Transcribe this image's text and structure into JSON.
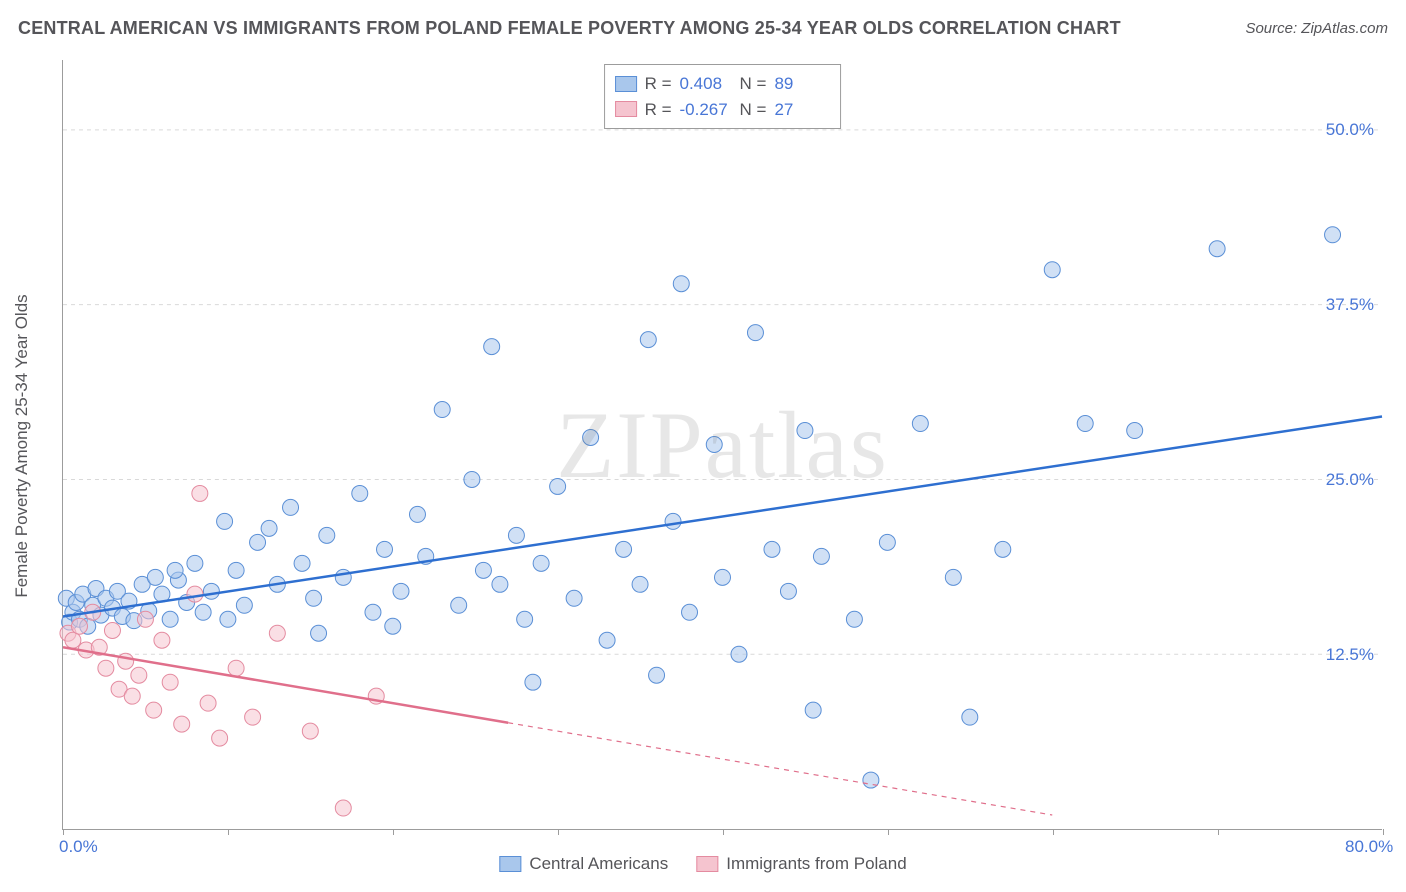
{
  "title": "CENTRAL AMERICAN VS IMMIGRANTS FROM POLAND FEMALE POVERTY AMONG 25-34 YEAR OLDS CORRELATION CHART",
  "source": "Source: ZipAtlas.com",
  "watermark": "ZIPatlas",
  "y_axis_label": "Female Poverty Among 25-34 Year Olds",
  "chart": {
    "type": "scatter",
    "xlim": [
      0,
      80
    ],
    "ylim": [
      0,
      55
    ],
    "xtick_positions": [
      0,
      10,
      20,
      30,
      40,
      50,
      60,
      70,
      80
    ],
    "xtick_labels": {
      "0": "0.0%",
      "80": "80.0%"
    },
    "ytick_positions": [
      12.5,
      25.0,
      37.5,
      50.0
    ],
    "ytick_labels": [
      "12.5%",
      "25.0%",
      "37.5%",
      "50.0%"
    ],
    "grid_color": "#d9d9d9",
    "axis_color": "#9c9c9c",
    "background_color": "#ffffff",
    "marker_radius": 8,
    "marker_opacity": 0.55,
    "line_width_solid": 2.5,
    "line_width_dash": 1.2
  },
  "series": [
    {
      "name": "Central Americans",
      "color_fill": "#a9c7ec",
      "color_stroke": "#5a8fd6",
      "trend_color": "#2e6fd0",
      "stats": {
        "R": "0.408",
        "N": "89"
      },
      "trend": {
        "x1": 0,
        "y1": 15.2,
        "x2": 80,
        "y2": 29.5,
        "solid_until_x": 80
      },
      "points": [
        [
          0.2,
          16.5
        ],
        [
          0.4,
          14.8
        ],
        [
          0.6,
          15.5
        ],
        [
          0.8,
          16.2
        ],
        [
          1.0,
          15.0
        ],
        [
          1.2,
          16.8
        ],
        [
          1.5,
          14.5
        ],
        [
          1.8,
          16.0
        ],
        [
          2.0,
          17.2
        ],
        [
          2.3,
          15.3
        ],
        [
          2.6,
          16.5
        ],
        [
          3.0,
          15.8
        ],
        [
          3.3,
          17.0
        ],
        [
          3.6,
          15.2
        ],
        [
          4.0,
          16.3
        ],
        [
          4.3,
          14.9
        ],
        [
          4.8,
          17.5
        ],
        [
          5.2,
          15.6
        ],
        [
          5.6,
          18.0
        ],
        [
          6.0,
          16.8
        ],
        [
          6.5,
          15.0
        ],
        [
          7.0,
          17.8
        ],
        [
          7.5,
          16.2
        ],
        [
          8.0,
          19.0
        ],
        [
          8.5,
          15.5
        ],
        [
          9.0,
          17.0
        ],
        [
          9.8,
          22.0
        ],
        [
          10.5,
          18.5
        ],
        [
          11.0,
          16.0
        ],
        [
          11.8,
          20.5
        ],
        [
          12.5,
          21.5
        ],
        [
          13.0,
          17.5
        ],
        [
          13.8,
          23.0
        ],
        [
          14.5,
          19.0
        ],
        [
          15.2,
          16.5
        ],
        [
          16.0,
          21.0
        ],
        [
          17.0,
          18.0
        ],
        [
          18.0,
          24.0
        ],
        [
          18.8,
          15.5
        ],
        [
          19.5,
          20.0
        ],
        [
          20.5,
          17.0
        ],
        [
          21.5,
          22.5
        ],
        [
          22.0,
          19.5
        ],
        [
          23.0,
          30.0
        ],
        [
          24.0,
          16.0
        ],
        [
          24.8,
          25.0
        ],
        [
          25.5,
          18.5
        ],
        [
          26.0,
          34.5
        ],
        [
          26.5,
          17.5
        ],
        [
          27.5,
          21.0
        ],
        [
          28.0,
          15.0
        ],
        [
          28.5,
          10.5
        ],
        [
          29.0,
          19.0
        ],
        [
          30.0,
          24.5
        ],
        [
          31.0,
          16.5
        ],
        [
          32.0,
          28.0
        ],
        [
          33.0,
          13.5
        ],
        [
          34.0,
          20.0
        ],
        [
          35.0,
          17.5
        ],
        [
          35.5,
          35.0
        ],
        [
          36.0,
          11.0
        ],
        [
          37.0,
          22.0
        ],
        [
          37.5,
          39.0
        ],
        [
          38.0,
          15.5
        ],
        [
          39.5,
          27.5
        ],
        [
          40.0,
          18.0
        ],
        [
          41.0,
          12.5
        ],
        [
          42.0,
          35.5
        ],
        [
          43.0,
          20.0
        ],
        [
          44.0,
          17.0
        ],
        [
          45.0,
          28.5
        ],
        [
          45.5,
          8.5
        ],
        [
          46.0,
          19.5
        ],
        [
          48.0,
          15.0
        ],
        [
          49.0,
          3.5
        ],
        [
          50.0,
          20.5
        ],
        [
          52.0,
          29.0
        ],
        [
          54.0,
          18.0
        ],
        [
          55.0,
          8.0
        ],
        [
          57.0,
          20.0
        ],
        [
          60.0,
          40.0
        ],
        [
          62.0,
          29.0
        ],
        [
          65.0,
          28.5
        ],
        [
          70.0,
          41.5
        ],
        [
          77.0,
          42.5
        ],
        [
          15.5,
          14.0
        ],
        [
          20.0,
          14.5
        ],
        [
          10.0,
          15.0
        ],
        [
          6.8,
          18.5
        ]
      ]
    },
    {
      "name": "Immigrants from Poland",
      "color_fill": "#f5c4cf",
      "color_stroke": "#e48ba0",
      "trend_color": "#e06f8b",
      "stats": {
        "R": "-0.267",
        "N": "27"
      },
      "trend": {
        "x1": 0,
        "y1": 13.0,
        "x2": 60,
        "y2": 1.0,
        "solid_until_x": 27
      },
      "points": [
        [
          0.3,
          14.0
        ],
        [
          0.6,
          13.5
        ],
        [
          1.0,
          14.5
        ],
        [
          1.4,
          12.8
        ],
        [
          1.8,
          15.5
        ],
        [
          2.2,
          13.0
        ],
        [
          2.6,
          11.5
        ],
        [
          3.0,
          14.2
        ],
        [
          3.4,
          10.0
        ],
        [
          3.8,
          12.0
        ],
        [
          4.2,
          9.5
        ],
        [
          4.6,
          11.0
        ],
        [
          5.0,
          15.0
        ],
        [
          5.5,
          8.5
        ],
        [
          6.0,
          13.5
        ],
        [
          6.5,
          10.5
        ],
        [
          7.2,
          7.5
        ],
        [
          8.0,
          16.8
        ],
        [
          8.8,
          9.0
        ],
        [
          9.5,
          6.5
        ],
        [
          10.5,
          11.5
        ],
        [
          11.5,
          8.0
        ],
        [
          13.0,
          14.0
        ],
        [
          15.0,
          7.0
        ],
        [
          17.0,
          1.5
        ],
        [
          19.0,
          9.5
        ],
        [
          8.3,
          24.0
        ]
      ]
    }
  ],
  "stats_legend": {
    "rows": [
      {
        "swatch_fill": "#a9c7ec",
        "swatch_stroke": "#5a8fd6",
        "r_label": "R =",
        "r_value": "0.408",
        "n_label": "N =",
        "n_value": "89"
      },
      {
        "swatch_fill": "#f5c4cf",
        "swatch_stroke": "#e48ba0",
        "r_label": "R =",
        "r_value": "-0.267",
        "n_label": "N =",
        "n_value": "27"
      }
    ]
  },
  "bottom_legend": [
    {
      "swatch_fill": "#a9c7ec",
      "swatch_stroke": "#5a8fd6",
      "label": "Central Americans"
    },
    {
      "swatch_fill": "#f5c4cf",
      "swatch_stroke": "#e48ba0",
      "label": "Immigrants from Poland"
    }
  ]
}
